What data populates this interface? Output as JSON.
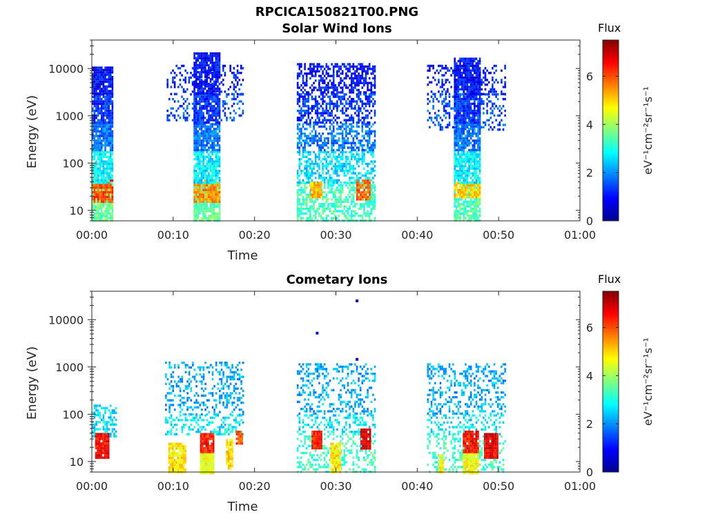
{
  "figure": {
    "title": "RPCICA150821T00.PNG",
    "colorbar_label": "Flux",
    "colorbar_units": "eV⁻¹cm⁻²sr⁻¹s⁻¹"
  },
  "chart_data": [
    {
      "type": "heatmap",
      "title": "Solar Wind Ions",
      "xlabel": "Time",
      "ylabel": "Energy (eV)",
      "x_ticks": [
        "00:00",
        "00:10",
        "00:20",
        "00:30",
        "00:40",
        "00:50",
        "01:00"
      ],
      "xlim_minutes": [
        0,
        60
      ],
      "y_scale": "log",
      "ylim": [
        6,
        40000
      ],
      "y_ticks": [
        10,
        100,
        1000,
        10000
      ],
      "y_tick_labels": [
        "10",
        "100",
        "1000",
        "10000"
      ],
      "colorbar": {
        "label": "Flux",
        "range": [
          0,
          7.5
        ],
        "ticks": [
          0,
          2,
          4,
          6
        ],
        "colormap": "jet"
      },
      "blobs": [
        {
          "t0": 0,
          "t1": 2.6,
          "density": 0.88,
          "profile": [
            [
              6,
              40,
              3.6
            ],
            [
              15,
              45,
              6.0
            ],
            [
              40,
              180,
              2.8
            ],
            [
              180,
              700,
              1.8
            ],
            [
              700,
              3000,
              1.3
            ],
            [
              3000,
              11000,
              1.0
            ]
          ]
        },
        {
          "t0": 9.2,
          "t1": 18.6,
          "density": 0.28,
          "profile": [
            [
              800,
              3000,
              1.5
            ],
            [
              3000,
              12000,
              1.1
            ]
          ]
        },
        {
          "t0": 12.5,
          "t1": 15.6,
          "density": 0.85,
          "profile": [
            [
              6,
              40,
              3.5
            ],
            [
              15,
              45,
              5.5
            ],
            [
              40,
              180,
              2.7
            ],
            [
              180,
              700,
              1.8
            ],
            [
              700,
              3000,
              1.3
            ],
            [
              3000,
              22000,
              1.0
            ]
          ]
        },
        {
          "t0": 25.2,
          "t1": 34.8,
          "density": 0.55,
          "profile": [
            [
              6,
              40,
              3.3
            ],
            [
              40,
              180,
              2.6
            ],
            [
              180,
              700,
              1.8
            ],
            [
              700,
              3000,
              1.3
            ],
            [
              3000,
              13000,
              1.0
            ]
          ]
        },
        {
          "t0": 26.8,
          "t1": 28.3,
          "density": 0.9,
          "profile": [
            [
              18,
              40,
              5.2
            ]
          ]
        },
        {
          "t0": 32.5,
          "t1": 34.2,
          "density": 0.9,
          "profile": [
            [
              18,
              45,
              5.8
            ]
          ]
        },
        {
          "t0": 41.2,
          "t1": 50.8,
          "density": 0.3,
          "profile": [
            [
              500,
              3000,
              1.5
            ],
            [
              3000,
              12000,
              1.1
            ]
          ]
        },
        {
          "t0": 44.5,
          "t1": 47.6,
          "density": 0.85,
          "profile": [
            [
              6,
              40,
              3.4
            ],
            [
              20,
              40,
              5.0
            ],
            [
              40,
              180,
              2.7
            ],
            [
              180,
              700,
              1.8
            ],
            [
              700,
              3000,
              1.3
            ],
            [
              3000,
              17000,
              1.0
            ]
          ]
        }
      ]
    },
    {
      "type": "heatmap",
      "title": "Cometary Ions",
      "xlabel": "Time",
      "ylabel": "Energy (eV)",
      "x_ticks": [
        "00:00",
        "00:10",
        "00:20",
        "00:30",
        "00:40",
        "00:50",
        "01:00"
      ],
      "xlim_minutes": [
        0,
        60
      ],
      "y_scale": "log",
      "ylim": [
        6,
        40000
      ],
      "y_ticks": [
        10,
        100,
        1000,
        10000
      ],
      "y_tick_labels": [
        "10",
        "100",
        "1000",
        "10000"
      ],
      "colorbar": {
        "label": "Flux",
        "range": [
          0,
          7.5
        ],
        "ticks": [
          0,
          2,
          4,
          6
        ],
        "colormap": "jet"
      },
      "blobs": [
        {
          "t0": 0,
          "t1": 3.0,
          "density": 0.5,
          "profile": [
            [
              35,
              160,
              2.6
            ]
          ]
        },
        {
          "t0": 0.4,
          "t1": 2.0,
          "density": 0.95,
          "profile": [
            [
              12,
              40,
              6.6
            ]
          ]
        },
        {
          "t0": 9.0,
          "t1": 18.6,
          "density": 0.3,
          "profile": [
            [
              100,
              1300,
              2.2
            ],
            [
              40,
              100,
              2.7
            ]
          ]
        },
        {
          "t0": 9.4,
          "t1": 11.4,
          "density": 0.9,
          "profile": [
            [
              6,
              25,
              4.8
            ]
          ]
        },
        {
          "t0": 13.3,
          "t1": 15.0,
          "density": 0.95,
          "profile": [
            [
              15,
              40,
              6.4
            ],
            [
              6,
              15,
              4.6
            ]
          ]
        },
        {
          "t0": 16.5,
          "t1": 17.3,
          "density": 0.9,
          "profile": [
            [
              7,
              30,
              5.0
            ]
          ]
        },
        {
          "t0": 17.7,
          "t1": 18.4,
          "density": 0.9,
          "profile": [
            [
              25,
              45,
              6.0
            ]
          ]
        },
        {
          "t0": 25.2,
          "t1": 34.8,
          "density": 0.32,
          "profile": [
            [
              100,
              1200,
              2.2
            ],
            [
              40,
              100,
              2.7
            ],
            [
              6,
              40,
              3.2
            ]
          ]
        },
        {
          "t0": 27.0,
          "t1": 28.2,
          "density": 0.95,
          "profile": [
            [
              20,
              45,
              6.3
            ]
          ]
        },
        {
          "t0": 29.3,
          "t1": 30.5,
          "density": 0.9,
          "profile": [
            [
              6,
              25,
              4.8
            ]
          ]
        },
        {
          "t0": 33.0,
          "t1": 34.3,
          "density": 0.95,
          "profile": [
            [
              18,
              50,
              6.8
            ]
          ]
        },
        {
          "t0": 41.2,
          "t1": 50.8,
          "density": 0.3,
          "profile": [
            [
              100,
              1200,
              2.2
            ],
            [
              40,
              100,
              2.7
            ],
            [
              6,
              40,
              3.2
            ]
          ]
        },
        {
          "t0": 42.6,
          "t1": 43.2,
          "density": 0.9,
          "profile": [
            [
              6,
              14,
              4.6
            ]
          ]
        },
        {
          "t0": 45.6,
          "t1": 47.4,
          "density": 0.95,
          "profile": [
            [
              15,
              45,
              6.5
            ],
            [
              6,
              15,
              4.6
            ]
          ]
        },
        {
          "t0": 48.2,
          "t1": 49.8,
          "density": 0.95,
          "profile": [
            [
              12,
              40,
              6.7
            ]
          ]
        }
      ],
      "points": [
        [
          32.6,
          25000,
          0.6
        ],
        [
          27.7,
          5200,
          1.0
        ],
        [
          32.6,
          1450,
          0.7
        ]
      ]
    }
  ]
}
